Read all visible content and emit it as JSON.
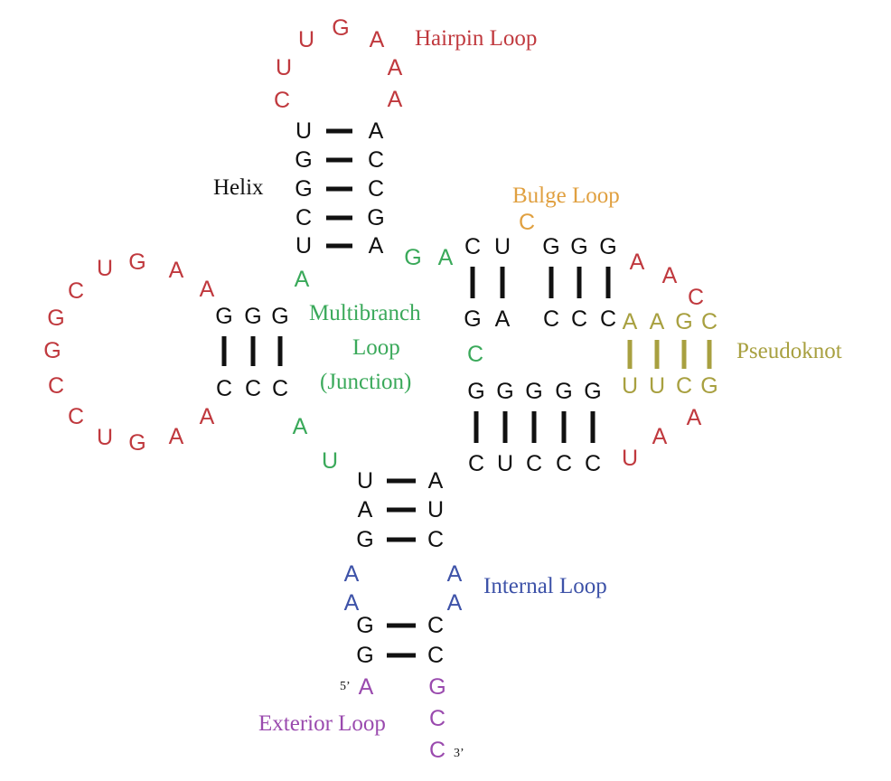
{
  "colors": {
    "stem": "#111111",
    "hairpin": "#c0393e",
    "outer_loop": "#c0393e",
    "multibranch": "#3aa95a",
    "bulge": "#e0a040",
    "pseudoknot": "#a8a040",
    "internal": "#3d52a8",
    "exterior": "#9a4aae",
    "helix_label": "#111111",
    "background": "#ffffff"
  },
  "labels": {
    "hairpin_loop": "Hairpin Loop",
    "helix": "Helix",
    "bulge_loop": "Bulge Loop",
    "multibranch_line1": "Multibranch",
    "multibranch_line2": "Loop",
    "multibranch_line3": "(Junction)",
    "pseudoknot": "Pseudoknot",
    "internal_loop": "Internal Loop",
    "exterior_loop": "Exterior Loop",
    "five_prime": "5’",
    "three_prime": "3’"
  },
  "sequences": {
    "hairpin": [
      "C",
      "U",
      "U",
      "G",
      "A",
      "A",
      "A"
    ],
    "top_helix_left": [
      "U",
      "G",
      "G",
      "C",
      "U"
    ],
    "top_helix_right": [
      "A",
      "C",
      "C",
      "G",
      "A"
    ],
    "left_outer_loop": [
      "A",
      "A",
      "G",
      "U",
      "C",
      "G",
      "G",
      "C",
      "C",
      "U",
      "G",
      "A",
      "A"
    ],
    "left_helix_top": [
      "G",
      "G",
      "G"
    ],
    "left_helix_bottom": [
      "C",
      "C",
      "C"
    ],
    "multibranch_a_top": "A",
    "multibranch_ga": [
      "G",
      "A"
    ],
    "multibranch_c": "C",
    "multibranch_a_bottom": "A",
    "multibranch_u_bottom": "U",
    "upper_right_top": [
      "C",
      "U",
      "G",
      "G",
      "G"
    ],
    "upper_right_bottom": [
      "G",
      "A",
      "C",
      "C",
      "C"
    ],
    "bulge": "C",
    "right_outer_loop_top": [
      "A",
      "A",
      "C"
    ],
    "pseudoknot_top": [
      "A",
      "A",
      "G",
      "C"
    ],
    "pseudoknot_bottom": [
      "U",
      "U",
      "C",
      "G"
    ],
    "right_outer_loop_bottom": [
      "A",
      "A",
      "U"
    ],
    "lower_right_top": [
      "G",
      "G",
      "G",
      "G",
      "G"
    ],
    "lower_right_bottom": [
      "C",
      "U",
      "C",
      "C",
      "C"
    ],
    "bottom_helix1_left": [
      "U",
      "A",
      "G"
    ],
    "bottom_helix1_right": [
      "A",
      "U",
      "C"
    ],
    "internal_left": [
      "A",
      "A"
    ],
    "internal_right": [
      "A",
      "A"
    ],
    "bottom_helix2_left": [
      "G",
      "G"
    ],
    "bottom_helix2_right": [
      "C",
      "C"
    ],
    "exterior_5": "A",
    "exterior_3": [
      "G",
      "C",
      "C"
    ]
  }
}
